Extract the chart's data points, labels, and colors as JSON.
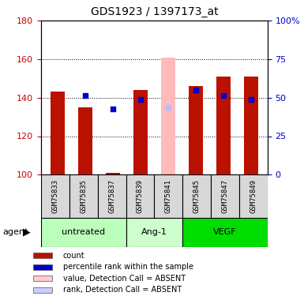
{
  "title": "GDS1923 / 1397173_at",
  "samples": [
    "GSM75833",
    "GSM75835",
    "GSM75837",
    "GSM75839",
    "GSM75841",
    "GSM75845",
    "GSM75847",
    "GSM75849"
  ],
  "groups": [
    {
      "label": "untreated",
      "indices": [
        0,
        1,
        2
      ],
      "color": "#bbffbb"
    },
    {
      "label": "Ang-1",
      "indices": [
        3,
        4
      ],
      "color": "#ccffcc"
    },
    {
      "label": "VEGF",
      "indices": [
        5,
        6,
        7
      ],
      "color": "#00ee00"
    }
  ],
  "red_values": [
    143,
    135,
    101,
    144,
    null,
    146,
    151,
    151
  ],
  "blue_values": [
    null,
    141,
    134,
    139,
    null,
    144,
    141,
    139
  ],
  "pink_value": [
    null,
    null,
    null,
    null,
    161,
    null,
    null,
    null
  ],
  "lightblue_value": [
    null,
    null,
    null,
    null,
    135,
    null,
    null,
    null
  ],
  "baseline": 100,
  "ylim": [
    100,
    180
  ],
  "yticks_left": [
    100,
    120,
    140,
    160,
    180
  ],
  "right_tick_labels": [
    "0",
    "25",
    "50",
    "75",
    "100%"
  ],
  "ylabel_left_color": "#cc0000",
  "ylabel_right_color": "#0000cc",
  "bar_width": 0.5,
  "red_color": "#bb1100",
  "blue_color": "#0000cc",
  "pink_color": "#ffbbbb",
  "lightblue_color": "#bbbbff",
  "legend_red_color": "#bb1100",
  "legend_blue_color": "#0000cc",
  "legend_pink_color": "#ffcccc",
  "legend_lightblue_color": "#ccccff",
  "grid_color": "black",
  "grid_style": "dotted",
  "sample_box_color": "#d8d8d8",
  "agent_label": "agent"
}
